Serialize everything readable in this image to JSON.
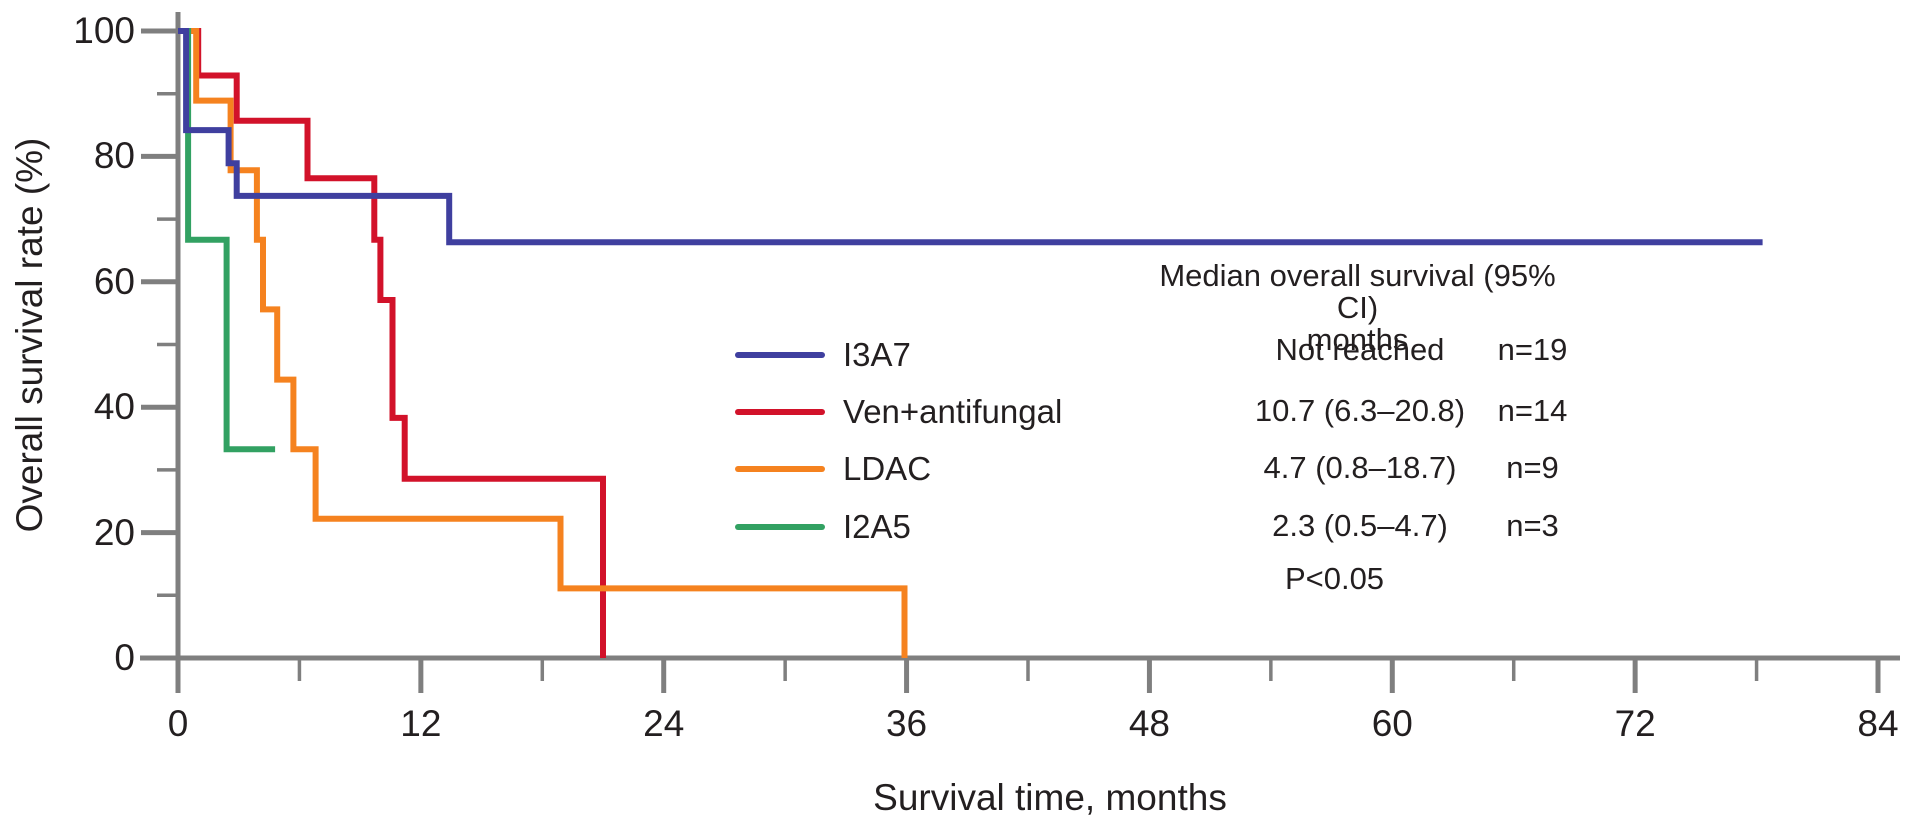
{
  "chart_data": {
    "type": "line",
    "subtype": "kaplan-meier-step",
    "xlabel": "Survival time, months",
    "ylabel": "Overall survival rate (%)",
    "xlim": [
      0,
      84
    ],
    "ylim": [
      0,
      100
    ],
    "x_ticks_major": [
      0,
      12,
      24,
      36,
      48,
      60,
      72,
      84
    ],
    "x_ticks_minor": [
      6,
      18,
      30,
      42,
      54,
      66,
      78
    ],
    "y_ticks_major": [
      0,
      20,
      40,
      60,
      80,
      100
    ],
    "y_ticks_minor": [
      10,
      30,
      50,
      70,
      90
    ],
    "grid": false,
    "axis_color": "#7f7f7f",
    "draw_order": [
      "Ven+antifungal",
      "LDAC",
      "I2A5",
      "I3A7"
    ],
    "series": [
      {
        "name": "I3A7",
        "color": "#3f3f9f",
        "n": 19,
        "median_os": "Not reached",
        "points": [
          [
            0,
            100
          ],
          [
            0.4,
            100
          ],
          [
            0.4,
            84.2
          ],
          [
            2.5,
            84.2
          ],
          [
            2.5,
            78.9
          ],
          [
            2.9,
            78.9
          ],
          [
            2.9,
            73.7
          ],
          [
            13.4,
            73.7
          ],
          [
            13.4,
            66.3
          ],
          [
            78.3,
            66.3
          ]
        ]
      },
      {
        "name": "Ven+antifungal",
        "color": "#d2122a",
        "n": 14,
        "median_os": "10.7 (6.3–20.8)",
        "points": [
          [
            0,
            100
          ],
          [
            1.0,
            100
          ],
          [
            1.0,
            92.9
          ],
          [
            2.9,
            92.9
          ],
          [
            2.9,
            85.7
          ],
          [
            6.4,
            85.7
          ],
          [
            6.4,
            76.5
          ],
          [
            9.7,
            76.5
          ],
          [
            9.7,
            66.7
          ],
          [
            10.0,
            66.7
          ],
          [
            10.0,
            57.1
          ],
          [
            10.6,
            57.1
          ],
          [
            10.6,
            38.3
          ],
          [
            11.2,
            38.3
          ],
          [
            11.2,
            28.6
          ],
          [
            21.0,
            28.6
          ],
          [
            21.0,
            0
          ]
        ]
      },
      {
        "name": "LDAC",
        "color": "#f5821f",
        "n": 9,
        "median_os": "4.7 (0.8–18.7)",
        "points": [
          [
            0,
            100
          ],
          [
            0.9,
            100
          ],
          [
            0.9,
            88.9
          ],
          [
            2.6,
            88.9
          ],
          [
            2.6,
            77.8
          ],
          [
            3.9,
            77.8
          ],
          [
            3.9,
            66.7
          ],
          [
            4.2,
            66.7
          ],
          [
            4.2,
            55.6
          ],
          [
            4.9,
            55.6
          ],
          [
            4.9,
            44.4
          ],
          [
            5.7,
            44.4
          ],
          [
            5.7,
            33.3
          ],
          [
            6.8,
            33.3
          ],
          [
            6.8,
            22.2
          ],
          [
            18.9,
            22.2
          ],
          [
            18.9,
            11.1
          ],
          [
            35.9,
            11.1
          ],
          [
            35.9,
            0
          ]
        ]
      },
      {
        "name": "I2A5",
        "color": "#32a162",
        "n": 3,
        "median_os": "2.3 (0.5–4.7)",
        "points": [
          [
            0,
            100
          ],
          [
            0.5,
            100
          ],
          [
            0.5,
            66.7
          ],
          [
            2.4,
            66.7
          ],
          [
            2.4,
            33.3
          ],
          [
            4.8,
            33.3
          ]
        ]
      }
    ]
  },
  "legend": {
    "items": [
      {
        "label": "I3A7",
        "color": "#3f3f9f"
      },
      {
        "label": "Ven+antifungal",
        "color": "#d2122a"
      },
      {
        "label": "LDAC",
        "color": "#f5821f"
      },
      {
        "label": "I2A5",
        "color": "#32a162"
      }
    ]
  },
  "stats_table": {
    "header_line1": "Median overall survival (95% CI)",
    "header_line2": "months",
    "rows": [
      {
        "median": "Not reached",
        "n": "n=19"
      },
      {
        "median": "10.7 (6.3–20.8)",
        "n": "n=14"
      },
      {
        "median": "4.7 (0.8–18.7)",
        "n": "n=9"
      },
      {
        "median": "2.3 (0.5–4.7)",
        "n": "n=3"
      }
    ],
    "p_value": "P<0.05"
  }
}
